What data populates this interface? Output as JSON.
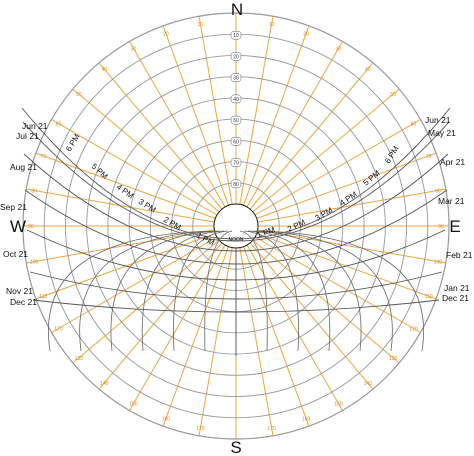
{
  "diagram": {
    "cardinals": {
      "north": "N",
      "south": "S",
      "east": "E",
      "west": "W"
    },
    "altitude_labels": [
      "10",
      "20",
      "30",
      "40",
      "50",
      "60",
      "70",
      "80"
    ],
    "azimuth_labels": [
      "10",
      "20",
      "30",
      "40",
      "50",
      "60",
      "70",
      "80",
      "90",
      "100",
      "110",
      "120",
      "130",
      "140",
      "150",
      "160",
      "170"
    ],
    "date_labels_left": [
      "Jun 21",
      "Jul 21",
      "Aug 21",
      "Sep 21",
      "Oct 21",
      "Nov 21",
      "Dec 21"
    ],
    "date_labels_right": [
      "Jun 21",
      "May 21",
      "Apr 21",
      "Mar 21",
      "Feb 21",
      "Jan 21",
      "Dec 21"
    ],
    "hour_labels_pm": [
      "1 PM",
      "2 PM",
      "3 PM",
      "4 PM",
      "5 PM",
      "6 PM"
    ],
    "hour_labels_am": [
      "1 PM",
      "2 PM",
      "3 PM",
      "4 PM",
      "5 PM",
      "6 PM"
    ],
    "noon_label": "NOON",
    "colors": {
      "grid": "#999999",
      "radial": "#f0a640",
      "label_orange": "#e08a1e",
      "text": "#111111"
    }
  }
}
